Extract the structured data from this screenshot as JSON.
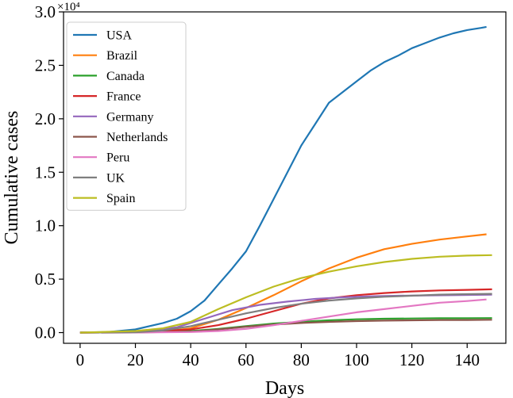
{
  "chart_data": {
    "type": "line",
    "xlabel": "Days",
    "ylabel": "Cumulative cases",
    "xlim": [
      -6,
      154
    ],
    "ylim": [
      -1000,
      30000
    ],
    "x_ticks": [
      0,
      20,
      40,
      60,
      80,
      100,
      120,
      140
    ],
    "y_ticks": [
      0,
      5000,
      10000,
      15000,
      20000,
      25000,
      30000
    ],
    "y_tick_labels": [
      "0.0",
      "0.5",
      "1.0",
      "1.5",
      "2.0",
      "2.5",
      "3.0"
    ],
    "y_scale_label": "×10⁴",
    "legend_position": "top-left",
    "series": [
      {
        "name": "USA",
        "color": "#1f77b4",
        "x": [
          0,
          10,
          20,
          25,
          30,
          35,
          40,
          45,
          50,
          55,
          60,
          65,
          70,
          75,
          80,
          85,
          90,
          95,
          100,
          105,
          110,
          115,
          120,
          125,
          130,
          135,
          140,
          145,
          147
        ],
        "y": [
          0,
          50,
          300,
          600,
          900,
          1300,
          2000,
          3000,
          4500,
          6000,
          7600,
          10000,
          12500,
          15000,
          17500,
          19500,
          21500,
          22500,
          23500,
          24500,
          25300,
          25900,
          26600,
          27100,
          27600,
          28000,
          28300,
          28500,
          28600
        ]
      },
      {
        "name": "Brazil",
        "color": "#ff7f0e",
        "x": [
          0,
          20,
          30,
          40,
          50,
          60,
          70,
          80,
          90,
          100,
          110,
          120,
          130,
          140,
          147
        ],
        "y": [
          0,
          20,
          80,
          400,
          1200,
          2300,
          3500,
          4800,
          6000,
          7000,
          7800,
          8300,
          8700,
          9000,
          9200
        ]
      },
      {
        "name": "Canada",
        "color": "#2ca02c",
        "x": [
          0,
          20,
          40,
          50,
          60,
          70,
          80,
          90,
          100,
          110,
          120,
          130,
          140,
          149
        ],
        "y": [
          0,
          20,
          150,
          350,
          600,
          850,
          1000,
          1150,
          1250,
          1300,
          1320,
          1340,
          1350,
          1360
        ]
      },
      {
        "name": "France",
        "color": "#d62728",
        "x": [
          0,
          20,
          40,
          50,
          60,
          70,
          80,
          90,
          100,
          110,
          120,
          130,
          140,
          149
        ],
        "y": [
          0,
          30,
          300,
          700,
          1300,
          2000,
          2700,
          3200,
          3500,
          3700,
          3850,
          3950,
          4000,
          4050
        ]
      },
      {
        "name": "Germany",
        "color": "#9467bd",
        "x": [
          0,
          20,
          35,
          45,
          55,
          65,
          75,
          85,
          95,
          105,
          115,
          125,
          135,
          149
        ],
        "y": [
          0,
          50,
          500,
          1300,
          2100,
          2600,
          2900,
          3150,
          3300,
          3400,
          3450,
          3480,
          3500,
          3550
        ]
      },
      {
        "name": "Netherlands",
        "color": "#8c564b",
        "x": [
          0,
          20,
          40,
          50,
          60,
          70,
          80,
          90,
          100,
          110,
          120,
          130,
          140,
          149
        ],
        "y": [
          0,
          10,
          100,
          300,
          550,
          750,
          900,
          1000,
          1080,
          1120,
          1150,
          1170,
          1180,
          1200
        ]
      },
      {
        "name": "Peru",
        "color": "#e377c2",
        "x": [
          0,
          20,
          40,
          50,
          60,
          70,
          80,
          90,
          100,
          110,
          120,
          130,
          140,
          147
        ],
        "y": [
          0,
          10,
          50,
          150,
          350,
          700,
          1100,
          1500,
          1900,
          2200,
          2500,
          2800,
          2950,
          3100
        ]
      },
      {
        "name": "UK",
        "color": "#7f7f7f",
        "x": [
          0,
          20,
          30,
          40,
          50,
          60,
          70,
          80,
          90,
          100,
          110,
          120,
          130,
          140,
          149
        ],
        "y": [
          0,
          30,
          200,
          600,
          1200,
          1800,
          2300,
          2700,
          3000,
          3200,
          3350,
          3450,
          3550,
          3600,
          3630
        ]
      },
      {
        "name": "Spain",
        "color": "#bcbd22",
        "x": [
          0,
          20,
          30,
          40,
          50,
          60,
          70,
          80,
          90,
          100,
          110,
          120,
          130,
          140,
          149
        ],
        "y": [
          0,
          150,
          400,
          1000,
          2200,
          3300,
          4300,
          5100,
          5700,
          6200,
          6600,
          6900,
          7100,
          7200,
          7250
        ]
      }
    ]
  }
}
